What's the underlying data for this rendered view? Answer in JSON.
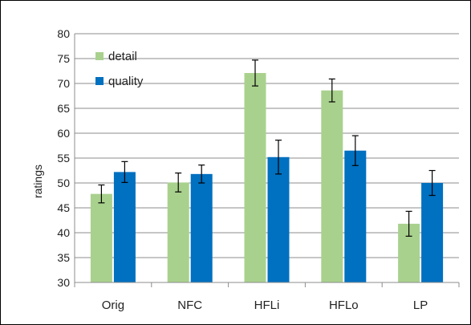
{
  "chart_data": {
    "type": "bar",
    "title": "",
    "xlabel": "",
    "ylabel": "ratings",
    "ylim": [
      30,
      80
    ],
    "yticks": [
      30,
      35,
      40,
      45,
      50,
      55,
      60,
      65,
      70,
      75,
      80
    ],
    "grid": true,
    "legend_position": "top-left",
    "categories": [
      "Orig",
      "NFC",
      "HFLi",
      "HFLo",
      "LP"
    ],
    "series": [
      {
        "name": "detail",
        "color": "#a9d18e",
        "values": [
          47.8,
          50.1,
          72.1,
          68.6,
          41.8
        ],
        "error": [
          1.8,
          1.9,
          2.6,
          2.3,
          2.5
        ]
      },
      {
        "name": "quality",
        "color": "#0070c0",
        "values": [
          52.2,
          51.8,
          55.2,
          56.5,
          50.0
        ],
        "error": [
          2.1,
          1.8,
          3.4,
          3.0,
          2.5
        ]
      }
    ]
  }
}
